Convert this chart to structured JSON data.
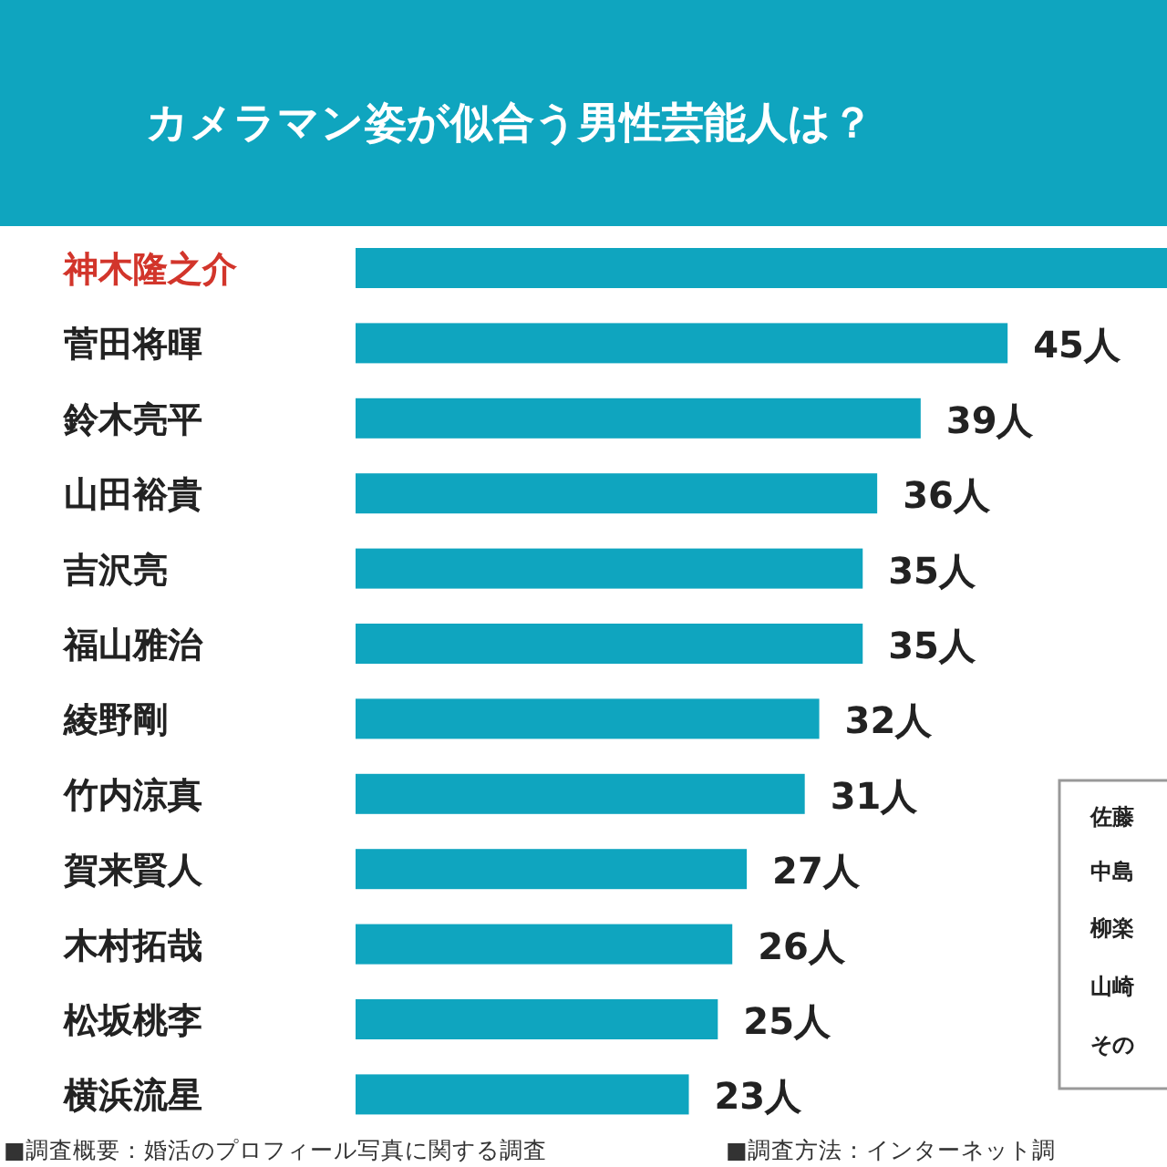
{
  "chart_data": {
    "type": "bar",
    "orientation": "horizontal",
    "title": "カメラマン姿が似合う男性芸能人は？",
    "categories": [
      "神木隆之介",
      "菅田将暉",
      "鈴木亮平",
      "山田裕貴",
      "吉沢亮",
      "福山雅治",
      "綾野剛",
      "竹内涼真",
      "賀来賢人",
      "木村拓哉",
      "松坂桃李",
      "横浜流星"
    ],
    "values": [
      56,
      45,
      39,
      36,
      35,
      35,
      32,
      31,
      27,
      26,
      25,
      23
    ],
    "value_labels": [
      null,
      "45人",
      "39人",
      "36人",
      "35人",
      "35人",
      "32人",
      "31人",
      "27人",
      "26人",
      "25人",
      "23人"
    ],
    "color": "#0fa5bf",
    "xlim": [
      0,
      56
    ],
    "annotations": [
      "佐藤",
      "中島",
      "柳楽",
      "山崎",
      "その",
      "■調査概要：婚活のプロフィール写真に関する調査",
      "■調査方法：インターネット調"
    ]
  }
}
